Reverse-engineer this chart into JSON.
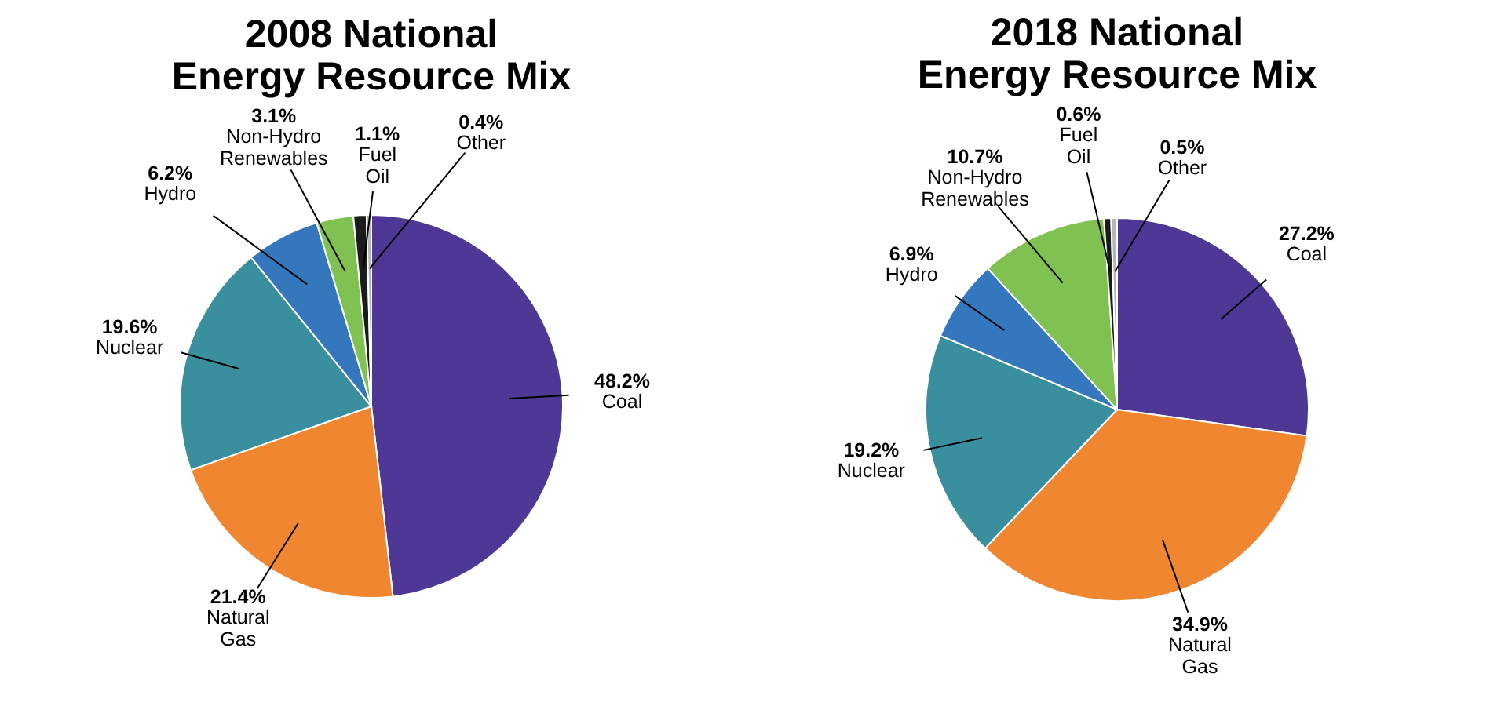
{
  "chart_data": [
    {
      "type": "pie",
      "title": "2008 National Energy Resource Mix",
      "categories": [
        "Coal",
        "Natural Gas",
        "Nuclear",
        "Hydro",
        "Non-Hydro Renewables",
        "Fuel Oil",
        "Other"
      ],
      "values": [
        48.2,
        21.4,
        19.6,
        6.2,
        3.1,
        1.1,
        0.4
      ],
      "colors": [
        "#4f3795",
        "#f0862f",
        "#3a8f9e",
        "#3577bd",
        "#80c252",
        "#1b1b1b",
        "#b0b6bc"
      ],
      "value_labels": [
        "48.2%",
        "21.4%",
        "19.6%",
        "6.2%",
        "3.1%",
        "1.1%",
        "0.4%"
      ]
    },
    {
      "type": "pie",
      "title": "2018 National Energy Resource Mix",
      "categories": [
        "Coal",
        "Natural Gas",
        "Nuclear",
        "Hydro",
        "Non-Hydro Renewables",
        "Fuel Oil",
        "Other"
      ],
      "values": [
        27.2,
        34.9,
        19.2,
        6.9,
        10.7,
        0.6,
        0.5
      ],
      "colors": [
        "#4f3795",
        "#f0862f",
        "#3a8f9e",
        "#3577bd",
        "#80c252",
        "#1b1b1b",
        "#b0b6bc"
      ],
      "value_labels": [
        "27.2%",
        "34.9%",
        "19.2%",
        "6.9%",
        "10.7%",
        "0.6%",
        "0.5%"
      ]
    }
  ]
}
